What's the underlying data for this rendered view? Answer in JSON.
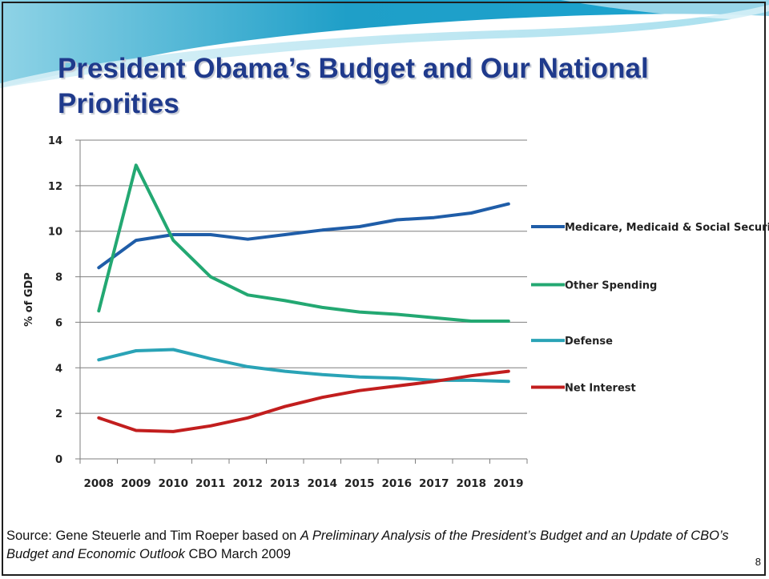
{
  "slide": {
    "title": "President Obama’s Budget and Our National Priorities",
    "source_prefix": "Source: Gene Steuerle and Tim Roeper based on ",
    "source_italic_1": "A Preliminary Analysis of the President’s Budget and an Update of CBO’s Budget and Economic Outlook",
    "source_suffix": " CBO March 2009",
    "page_number": "8"
  },
  "colors": {
    "title": "#1f3a8c",
    "header_swoosh": "#2fa7c9",
    "frame": "#1e1e1e"
  },
  "chart_data": {
    "type": "line",
    "title": "",
    "xlabel": "",
    "ylabel": "% of GDP",
    "x": [
      "2008",
      "2009",
      "2010",
      "2011",
      "2012",
      "2013",
      "2014",
      "2015",
      "2016",
      "2017",
      "2018",
      "2019"
    ],
    "ylim": [
      0,
      14
    ],
    "yticks": [
      0,
      2,
      4,
      6,
      8,
      10,
      12,
      14
    ],
    "grid": "horizontal",
    "legend_position": "right",
    "series": [
      {
        "name": "Medicare, Medicaid & Social Security",
        "color": "#1f5da8",
        "values": [
          8.4,
          9.6,
          9.85,
          9.85,
          9.65,
          9.85,
          10.05,
          10.2,
          10.5,
          10.6,
          10.8,
          11.2
        ]
      },
      {
        "name": "Other Spending",
        "color": "#23a872",
        "values": [
          6.5,
          12.9,
          9.6,
          8.0,
          7.2,
          6.95,
          6.65,
          6.45,
          6.35,
          6.2,
          6.05,
          6.05
        ]
      },
      {
        "name": "Defense",
        "color": "#2aa3b6",
        "values": [
          4.35,
          4.75,
          4.8,
          4.4,
          4.05,
          3.85,
          3.7,
          3.6,
          3.55,
          3.45,
          3.45,
          3.4
        ]
      },
      {
        "name": "Net Interest",
        "color": "#c21e1e",
        "values": [
          1.8,
          1.25,
          1.2,
          1.45,
          1.8,
          2.3,
          2.7,
          3.0,
          3.2,
          3.4,
          3.65,
          3.85
        ]
      }
    ]
  }
}
